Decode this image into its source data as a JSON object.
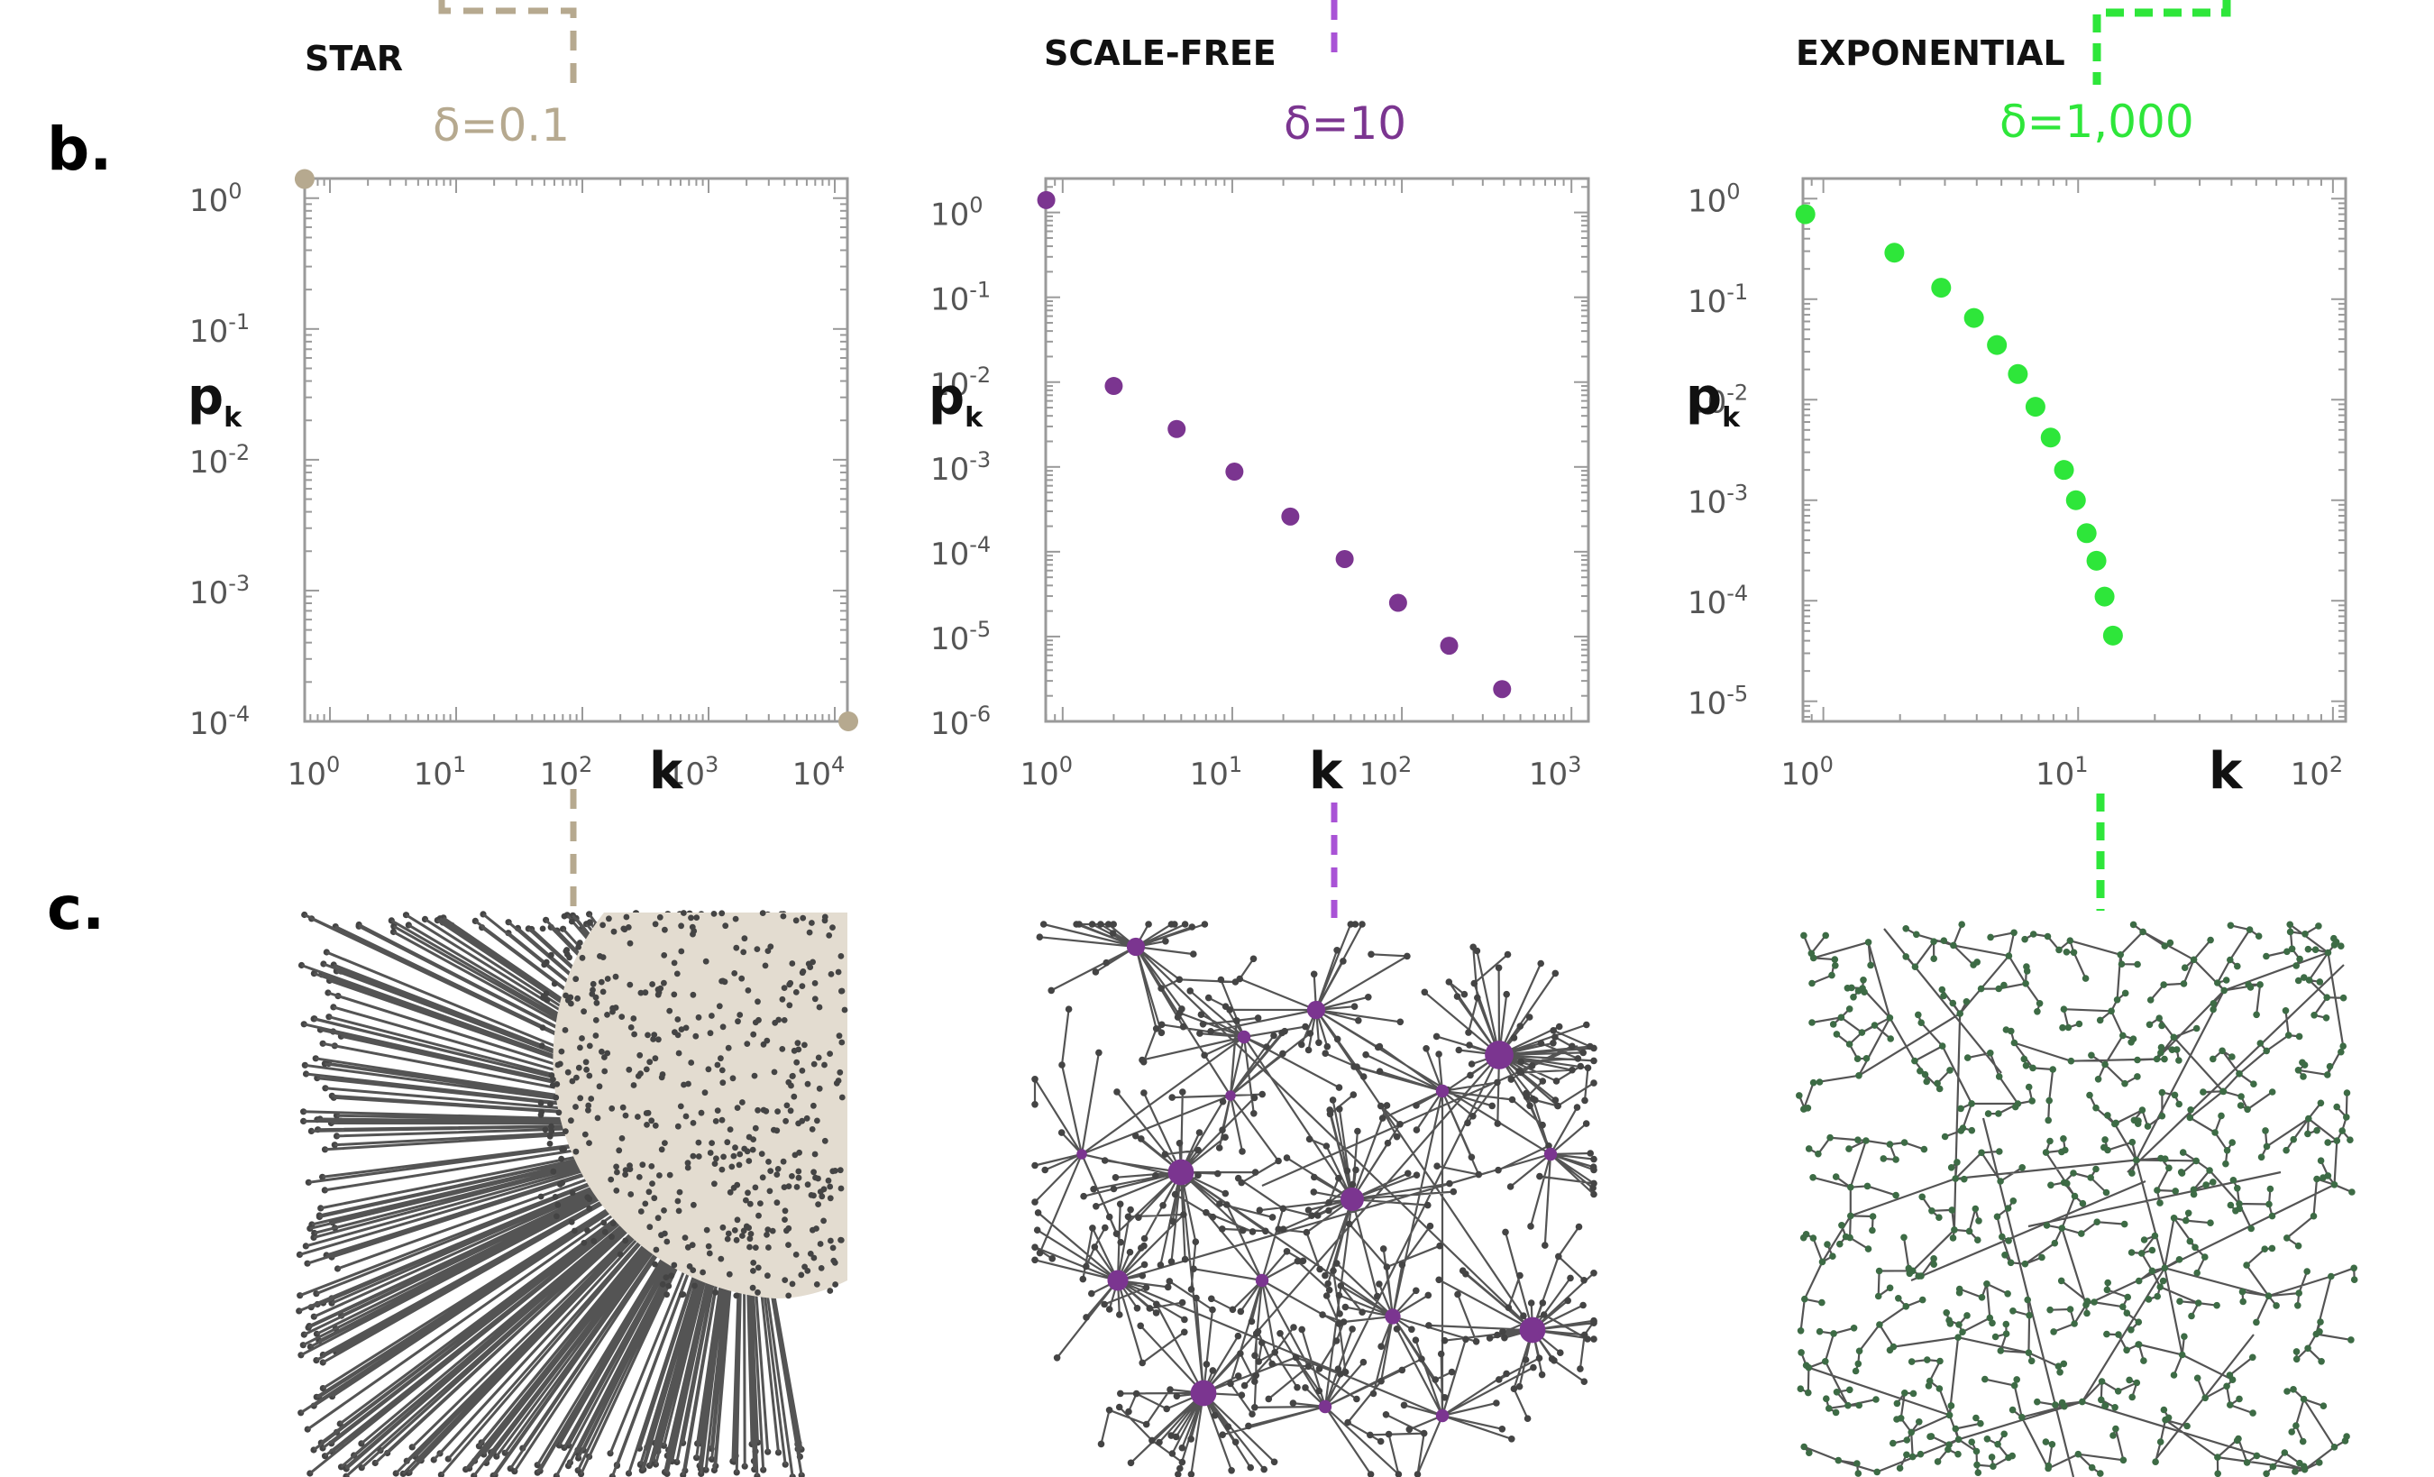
{
  "figure": {
    "label_b": "b.",
    "label_c": "c."
  },
  "colors": {
    "star": "#b6a98f",
    "star_light": "#e3dcd0",
    "scale_free": "#7b3590",
    "scale_free_dash": "#a953d6",
    "exponential": "#2ee63a",
    "edge": "#545454",
    "node": "#444444",
    "exp_node": "#3d6b45",
    "axis": "#9a9a9a"
  },
  "chart_data": [
    {
      "type": "scatter",
      "title": "STAR",
      "annotation": "δ=0.1",
      "xlabel": "k",
      "ylabel": "p",
      "ylabel_sub": "k",
      "xscale": "log",
      "yscale": "log",
      "xlim_exp": [
        -0.2,
        4.1
      ],
      "ylim_exp": [
        -4,
        0.15
      ],
      "xticks": [
        "10",
        "10",
        "10",
        "10",
        "10"
      ],
      "xtick_exp": [
        "0",
        "1",
        "2",
        "3",
        "4"
      ],
      "yticks": [
        "10",
        "10",
        "10",
        "10",
        "10"
      ],
      "ytick_exp": [
        "0",
        "-1",
        "-2",
        "-3",
        "-4"
      ],
      "points": [
        {
          "x": 0.63,
          "y": 1.4
        },
        {
          "x": 12800,
          "y": 0.0001
        }
      ]
    },
    {
      "type": "scatter",
      "title": "SCALE-FREE",
      "annotation": "δ=10",
      "xlabel": "k",
      "ylabel": "p",
      "ylabel_sub": "k",
      "xscale": "log",
      "yscale": "log",
      "xlim_exp": [
        -0.1,
        3.1
      ],
      "ylim_exp": [
        -6,
        0.4
      ],
      "xticks": [
        "10",
        "10",
        "10",
        "10"
      ],
      "xtick_exp": [
        "0",
        "1",
        "2",
        "3"
      ],
      "yticks": [
        "10",
        "10",
        "10",
        "10",
        "10",
        "10",
        "10"
      ],
      "ytick_exp": [
        "0",
        "-1",
        "-2",
        "-3",
        "-4",
        "-5",
        "-6"
      ],
      "points": [
        {
          "x": 0.8,
          "y": 1.4
        },
        {
          "x": 2.0,
          "y": 0.009
        },
        {
          "x": 4.7,
          "y": 0.0028
        },
        {
          "x": 10.3,
          "y": 0.00088
        },
        {
          "x": 22,
          "y": 0.00026
        },
        {
          "x": 46,
          "y": 8.2e-05
        },
        {
          "x": 95,
          "y": 2.5e-05
        },
        {
          "x": 190,
          "y": 7.8e-06
        },
        {
          "x": 390,
          "y": 2.4e-06
        }
      ]
    },
    {
      "type": "scatter",
      "title": "EXPONENTIAL",
      "annotation": "δ=1,000",
      "xlabel": "k",
      "ylabel": "p",
      "ylabel_sub": "k",
      "xscale": "log",
      "yscale": "log",
      "xlim_exp": [
        -0.08,
        2.05
      ],
      "ylim_exp": [
        -5.2,
        0.2
      ],
      "xticks": [
        "10",
        "10",
        "10"
      ],
      "xtick_exp": [
        "0",
        "1",
        "2"
      ],
      "yticks": [
        "10",
        "10",
        "10",
        "10",
        "10",
        "10"
      ],
      "ytick_exp": [
        "0",
        "-1",
        "-2",
        "-3",
        "-4",
        "-5"
      ],
      "points": [
        {
          "x": 0.85,
          "y": 0.7
        },
        {
          "x": 1.9,
          "y": 0.29
        },
        {
          "x": 2.9,
          "y": 0.13
        },
        {
          "x": 3.9,
          "y": 0.065
        },
        {
          "x": 4.8,
          "y": 0.035
        },
        {
          "x": 5.8,
          "y": 0.018
        },
        {
          "x": 6.8,
          "y": 0.0085
        },
        {
          "x": 7.8,
          "y": 0.0042
        },
        {
          "x": 8.8,
          "y": 0.002
        },
        {
          "x": 9.8,
          "y": 0.001
        },
        {
          "x": 10.8,
          "y": 0.00047
        },
        {
          "x": 11.8,
          "y": 0.00025
        },
        {
          "x": 12.7,
          "y": 0.00011
        },
        {
          "x": 13.7,
          "y": 4.5e-05
        }
      ]
    }
  ]
}
